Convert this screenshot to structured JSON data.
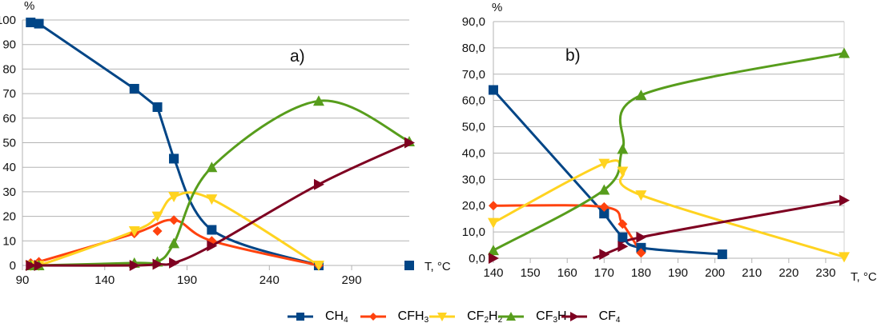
{
  "legend": [
    {
      "key": "CH4",
      "base": "CH",
      "sub": "4",
      "suffix": "",
      "color": "#004586",
      "marker": "square"
    },
    {
      "key": "CFH3",
      "base": "CFH",
      "sub": "3",
      "suffix": "",
      "color": "#ff420e",
      "marker": "diamond"
    },
    {
      "key": "CF2H2",
      "base": "CF",
      "sub": "2",
      "suffix": "H",
      "sub2": "2",
      "color": "#ffd320",
      "marker": "triangle-down"
    },
    {
      "key": "CF3H",
      "base": "CF",
      "sub": "3",
      "suffix": "H",
      "color": "#579d1c",
      "marker": "triangle-up"
    },
    {
      "key": "CF4",
      "base": "CF",
      "sub": "4",
      "suffix": "",
      "color": "#7e0021",
      "marker": "triangle-right"
    }
  ],
  "chart_data": [
    {
      "type": "line",
      "panel_label": "a)",
      "ylabel": "%",
      "xlabel": "T, °C",
      "xlim": [
        90,
        325
      ],
      "ylim": [
        0,
        100
      ],
      "xticks": [
        90,
        140,
        190,
        240,
        290
      ],
      "yticks": [
        0,
        10,
        20,
        30,
        40,
        50,
        60,
        70,
        80,
        90,
        100
      ],
      "ytick_labels": [
        "0",
        "10",
        "20",
        "30",
        "40",
        "50",
        "60",
        "70",
        "80",
        "90",
        "100"
      ],
      "grid": true,
      "series": [
        {
          "name": "CH4",
          "smooth": false,
          "points": [
            [
              95,
              99
            ],
            [
              100,
              98.5
            ],
            [
              158,
              72
            ],
            [
              172,
              64.5
            ],
            [
              182,
              43.5
            ]
          ]
        },
        {
          "name": "CH4",
          "smooth": true,
          "points": [
            [
              182,
              43.5
            ],
            [
              205,
              14.5
            ],
            [
              270,
              0
            ]
          ]
        },
        {
          "name": "CH4",
          "smooth": false,
          "markers_only": true,
          "points": [
            [
              325,
              0
            ]
          ]
        },
        {
          "name": "CFH3",
          "smooth": true,
          "points": [
            [
              95,
              1
            ],
            [
              100,
              1.5
            ],
            [
              158,
              13
            ],
            [
              182,
              18.5
            ],
            [
              205,
              10
            ],
            [
              270,
              0
            ]
          ]
        },
        {
          "name": "CFH3",
          "smooth": false,
          "markers_only": true,
          "points": [
            [
              172,
              14
            ]
          ]
        },
        {
          "name": "CF2H2",
          "smooth": true,
          "points": [
            [
              95,
              0
            ],
            [
              100,
              0
            ],
            [
              158,
              14
            ],
            [
              172,
              20
            ],
            [
              182,
              28
            ],
            [
              205,
              27
            ],
            [
              270,
              0
            ]
          ]
        },
        {
          "name": "CF3H",
          "smooth": true,
          "points": [
            [
              95,
              0
            ],
            [
              100,
              0
            ],
            [
              158,
              1
            ],
            [
              172,
              1.5
            ],
            [
              182,
              9
            ],
            [
              205,
              40
            ],
            [
              270,
              67
            ],
            [
              325,
              50.5
            ]
          ]
        },
        {
          "name": "CF4",
          "smooth": true,
          "points": [
            [
              95,
              0
            ],
            [
              100,
              0
            ],
            [
              158,
              0
            ],
            [
              172,
              0.5
            ],
            [
              182,
              1
            ],
            [
              205,
              8
            ],
            [
              270,
              33
            ],
            [
              325,
              50
            ]
          ]
        }
      ]
    },
    {
      "type": "line",
      "panel_label": "b)",
      "ylabel": "%",
      "xlabel": "T, °C",
      "xlim": [
        140,
        235
      ],
      "ylim": [
        0,
        90
      ],
      "xticks": [
        140,
        150,
        160,
        170,
        180,
        190,
        200,
        210,
        220,
        230
      ],
      "yticks": [
        0,
        10,
        20,
        30,
        40,
        50,
        60,
        70,
        80,
        90
      ],
      "ytick_labels": [
        "0,0",
        "10,0",
        "20,0",
        "30,0",
        "40,0",
        "50,0",
        "60,0",
        "70,0",
        "80,0",
        "90,0"
      ],
      "grid": true,
      "series": [
        {
          "name": "CH4",
          "smooth": false,
          "points": [
            [
              140,
              64
            ],
            [
              170,
              17
            ]
          ]
        },
        {
          "name": "CH4",
          "smooth": true,
          "points": [
            [
              170,
              17
            ],
            [
              175,
              8
            ],
            [
              180,
              4
            ],
            [
              202,
              1.5
            ]
          ]
        },
        {
          "name": "CFH3",
          "smooth": true,
          "points": [
            [
              140,
              20
            ],
            [
              170,
              19.5
            ],
            [
              175,
              13
            ],
            [
              180,
              2
            ]
          ]
        },
        {
          "name": "CF2H2",
          "smooth": true,
          "points": [
            [
              140,
              13.5
            ],
            [
              170,
              36
            ],
            [
              175,
              33
            ],
            [
              180,
              24
            ],
            [
              235,
              0.5
            ]
          ]
        },
        {
          "name": "CF3H",
          "smooth": true,
          "points": [
            [
              140,
              3
            ],
            [
              170,
              26
            ],
            [
              175,
              41.5
            ],
            [
              180,
              62
            ],
            [
              235,
              78
            ]
          ]
        },
        {
          "name": "CF4",
          "smooth": false,
          "markers_only": true,
          "points": [
            [
              140,
              0
            ]
          ]
        },
        {
          "name": "CF4",
          "smooth": true,
          "points": [
            [
              167,
              0
            ],
            [
              170,
              1.5
            ],
            [
              175,
              4.5
            ],
            [
              180,
              8
            ],
            [
              235,
              22
            ]
          ]
        }
      ]
    }
  ]
}
